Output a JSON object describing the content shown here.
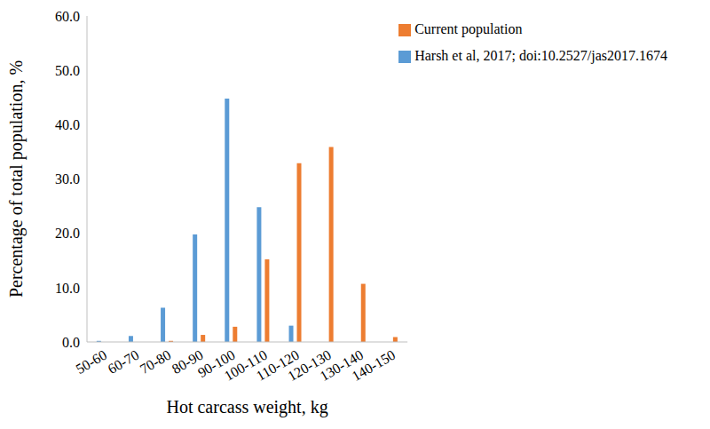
{
  "chart_data": {
    "type": "bar",
    "x_label": "Hot carcass weight, kg",
    "y_label": "Percentage of total population, %",
    "categories": [
      "50-60",
      "60-70",
      "70-80",
      "80-90",
      "90-100",
      "100-110",
      "110-120",
      "120-130",
      "130-140",
      "140-150"
    ],
    "series": [
      {
        "name": "Harsh et al, 2017; doi:10.2527/jas2017.1674",
        "color": "#5b9bd5",
        "values": [
          0.2,
          1.1,
          6.3,
          19.8,
          44.8,
          24.8,
          3.0,
          0,
          0,
          0
        ]
      },
      {
        "name": "Current population",
        "color": "#ed7d31",
        "values": [
          0,
          0,
          0.2,
          1.3,
          2.8,
          15.2,
          32.9,
          35.9,
          10.7,
          0.9
        ]
      }
    ],
    "ylim": [
      0,
      60
    ],
    "yticks": [
      {
        "value": 0,
        "label": "0.0"
      },
      {
        "value": 10,
        "label": "10.0"
      },
      {
        "value": 20,
        "label": "20.0"
      },
      {
        "value": 30,
        "label": "30.0"
      },
      {
        "value": 40,
        "label": "40.0"
      },
      {
        "value": 50,
        "label": "50.0"
      },
      {
        "value": 60,
        "label": "60.0"
      }
    ],
    "grid": false,
    "legend": "top-right"
  }
}
